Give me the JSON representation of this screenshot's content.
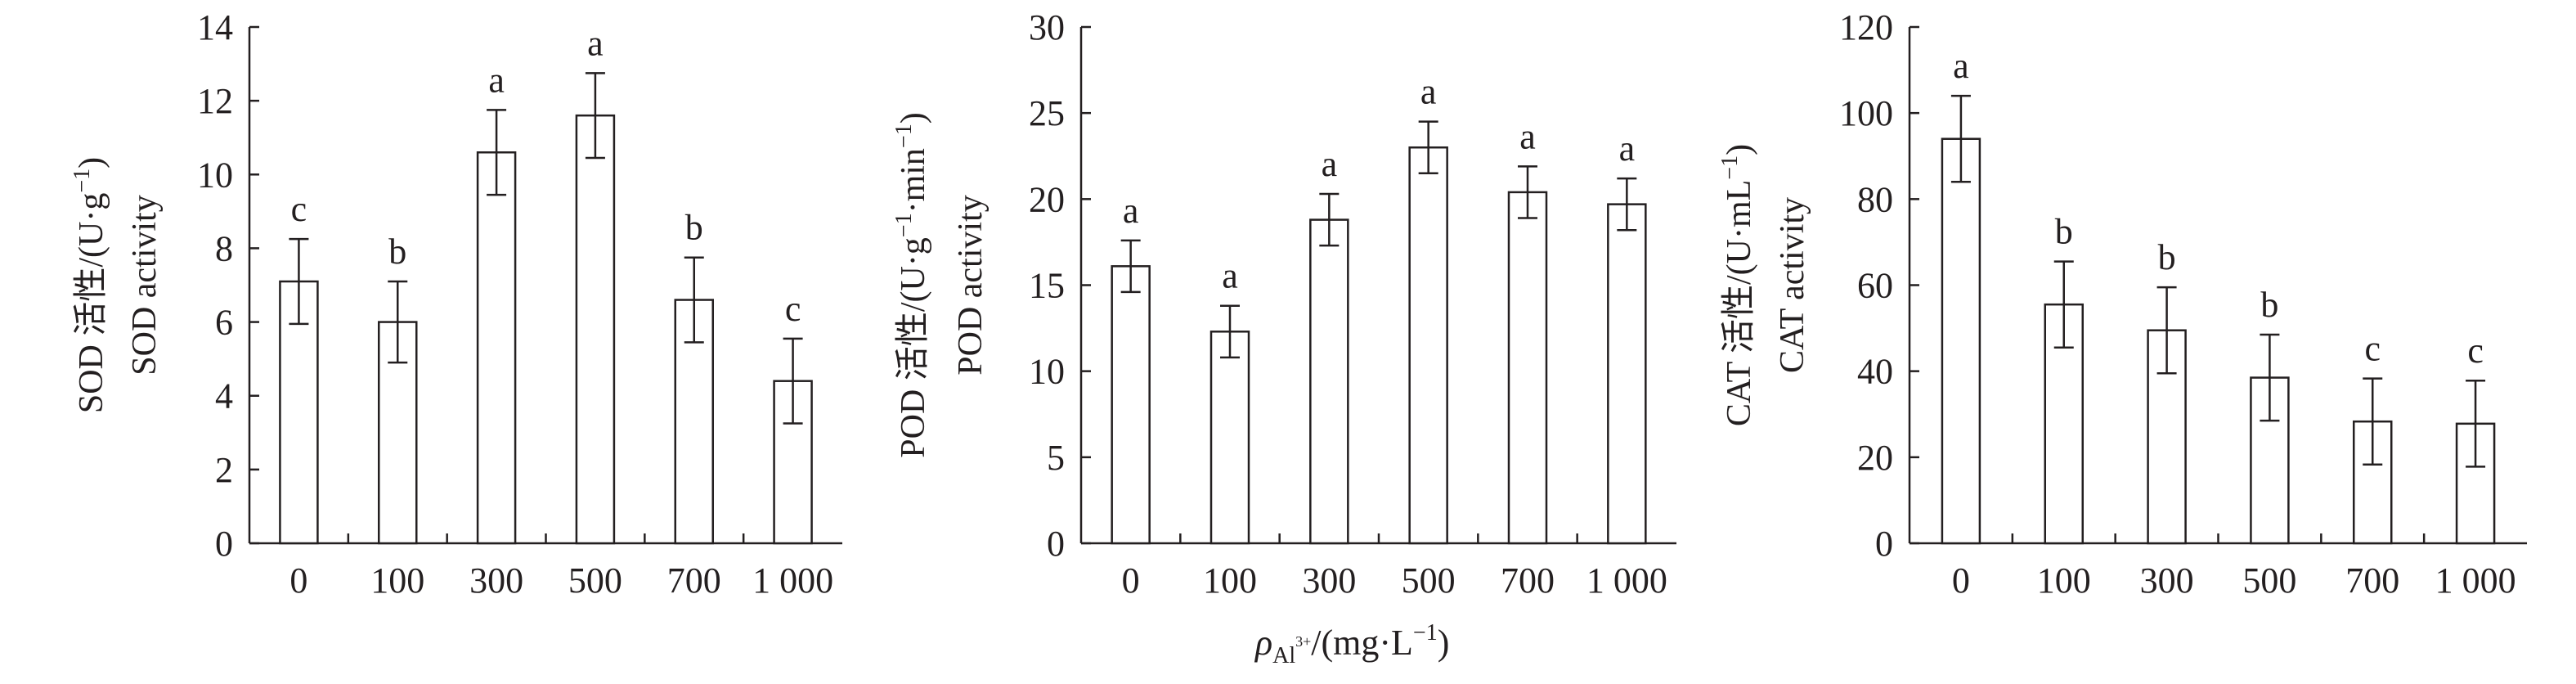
{
  "chart_data": [
    {
      "type": "bar",
      "categories": [
        "0",
        "100",
        "300",
        "500",
        "700",
        "1 000"
      ],
      "values": [
        7.1,
        6.0,
        10.6,
        11.6,
        6.6,
        4.4
      ],
      "errors": [
        1.15,
        1.1,
        1.15,
        1.15,
        1.15,
        1.15
      ],
      "significance": [
        "c",
        "b",
        "a",
        "a",
        "b",
        "c"
      ],
      "ylim": [
        0,
        14
      ],
      "yticks": [
        0,
        2,
        4,
        6,
        8,
        10,
        12,
        14
      ],
      "ylabel_line1": "SOD 活性/(U·g",
      "ylabel_sup": "−1",
      "ylabel_line1_end": ")",
      "ylabel_line2": "SOD activity",
      "grid": false
    },
    {
      "type": "bar",
      "categories": [
        "0",
        "100",
        "300",
        "500",
        "700",
        "1 000"
      ],
      "values": [
        16.1,
        12.3,
        18.8,
        23.0,
        20.4,
        19.7
      ],
      "errors": [
        1.5,
        1.5,
        1.5,
        1.5,
        1.5,
        1.5
      ],
      "significance": [
        "a",
        "a",
        "a",
        "a",
        "a",
        "a"
      ],
      "ylim": [
        0,
        30
      ],
      "yticks": [
        0,
        5,
        10,
        15,
        20,
        25,
        30
      ],
      "ylabel_line1": "POD 活性/(U·g",
      "ylabel_sup": "−1",
      "ylabel_mid": "·min",
      "ylabel_sup2": "−1",
      "ylabel_line1_end": ")",
      "ylabel_line2": "POD activity",
      "grid": false
    },
    {
      "type": "bar",
      "categories": [
        "0",
        "100",
        "300",
        "500",
        "700",
        "1 000"
      ],
      "values": [
        94,
        55.5,
        49.5,
        38.5,
        28.3,
        27.8
      ],
      "errors": [
        10,
        10,
        10,
        10,
        10,
        10
      ],
      "significance": [
        "a",
        "b",
        "b",
        "b",
        "c",
        "c"
      ],
      "ylim": [
        0,
        120
      ],
      "yticks": [
        0,
        20,
        40,
        60,
        80,
        100,
        120
      ],
      "ylabel_line1": "CAT 活性/(U·mL",
      "ylabel_sup": "−1",
      "ylabel_line1_end": ")",
      "ylabel_line2": "CAT activity",
      "grid": false
    }
  ],
  "xlabel": {
    "symbol": "ρ",
    "subscript": "Al",
    "sub_superscript": "3+",
    "unit": "/(mg·L",
    "unit_sup": "−1",
    "unit_end": ")"
  },
  "colors": {
    "bar_fill": "#ffffff",
    "stroke": "#231f20"
  }
}
